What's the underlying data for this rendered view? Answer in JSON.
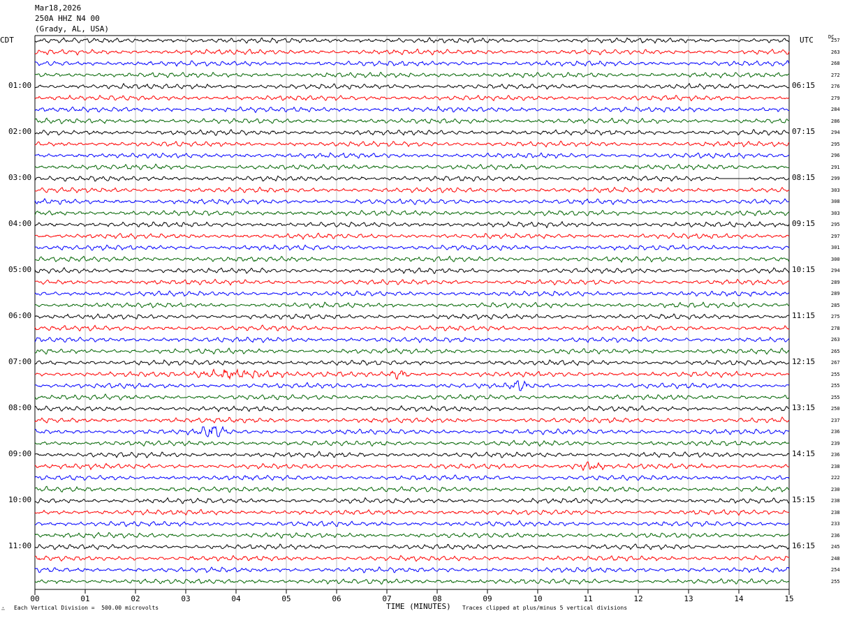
{
  "header": {
    "date": "Mar18,2026",
    "station": "250A HHZ N4 00",
    "location": "(Grady, AL, USA)"
  },
  "left_tz": "CDT",
  "right_tz": "UTC",
  "dc_label": "DC",
  "footer": {
    "scale_note": "Each Vertical Division =  500.00 microvolts",
    "clip_note": "Traces clipped at plus/minus 5 vertical divisions",
    "corner_mark": "∴"
  },
  "colors": {
    "trace_cycle": [
      "#000000",
      "#ff0000",
      "#0000ff",
      "#006400"
    ],
    "grid": "#999999"
  },
  "chart_data": {
    "type": "helicorder",
    "xlabel": "TIME (MINUTES)",
    "x_ticks": [
      "00",
      "01",
      "02",
      "03",
      "04",
      "05",
      "06",
      "07",
      "08",
      "09",
      "10",
      "11",
      "12",
      "13",
      "14",
      "15"
    ],
    "minutes_per_line": 15,
    "left_hour_labels": [
      "01:00",
      "02:00",
      "03:00",
      "04:00",
      "05:00",
      "06:00",
      "07:00",
      "08:00",
      "09:00",
      "10:00",
      "11:00"
    ],
    "right_hour_labels": [
      "06:15",
      "07:15",
      "08:15",
      "09:15",
      "10:15",
      "11:15",
      "12:15",
      "13:15",
      "14:15",
      "15:15",
      "16:15"
    ],
    "dc_offsets": [
      257,
      263,
      268,
      272,
      276,
      279,
      284,
      286,
      294,
      295,
      296,
      291,
      299,
      303,
      308,
      303,
      295,
      297,
      301,
      300,
      294,
      289,
      289,
      285,
      275,
      278,
      263,
      265,
      267,
      255,
      255,
      255,
      250,
      237,
      236,
      239,
      236,
      238,
      222,
      230,
      238,
      238,
      233,
      236,
      245,
      248,
      254,
      255
    ],
    "events": [
      {
        "line": 29,
        "start_min": 3.0,
        "end_min": 5.2,
        "amp": 1.7
      },
      {
        "line": 29,
        "start_min": 7.0,
        "end_min": 7.5,
        "amp": 1.9
      },
      {
        "line": 30,
        "start_min": 9.4,
        "end_min": 9.9,
        "amp": 1.4
      },
      {
        "line": 34,
        "start_min": 3.2,
        "end_min": 3.9,
        "amp": 2.4
      },
      {
        "line": 37,
        "start_min": 10.5,
        "end_min": 11.5,
        "amp": 1.3
      },
      {
        "line": 12,
        "start_min": 13.6,
        "end_min": 14.2,
        "amp": 0.1
      }
    ]
  }
}
